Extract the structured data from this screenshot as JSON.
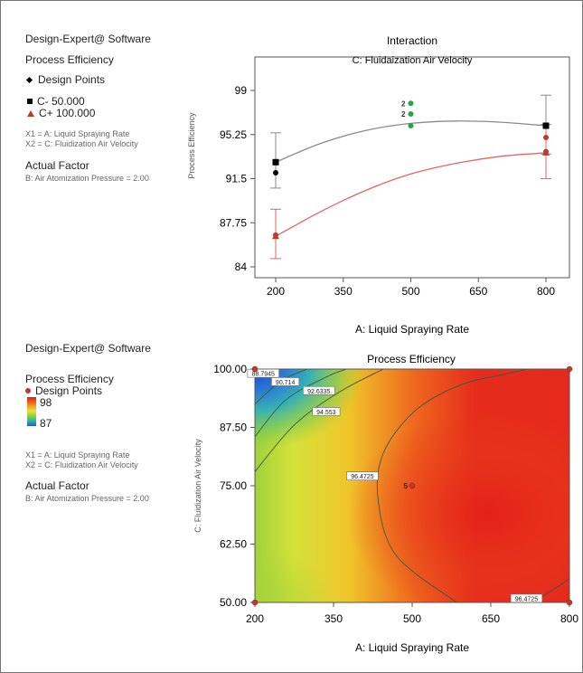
{
  "top": {
    "software": "Design-Expert@ Software",
    "response": "Process Efficiency",
    "design_points_label": "Design Points",
    "legend_low": "C- 50.000",
    "legend_high": "C+ 100.000",
    "x1_line": "X1 = A: Liquid Spraying Rate",
    "x2_line": "X2 = C: Fluidization Air Velocity",
    "actual_factor_title": "Actual Factor",
    "actual_factor_value": "B: Air Atomization Pressure = 2.00"
  },
  "bottom": {
    "software": "Design-Expert@ Software",
    "response": "Process Efficiency",
    "design_points_label": "Design Points",
    "scale_high": "98",
    "scale_low": "87",
    "x1_line": "X1 = A: Liquid Spraying Rate",
    "x2_line": "X2 = C: Fluidization Air Velocity",
    "actual_factor_title": "Actual Factor",
    "actual_factor_value": "B: Air Atomization Pressure = 2.00"
  },
  "colors": {
    "low_series": "#000000",
    "high_series": "#c0392b",
    "low_curve": "#8a8a8a",
    "high_curve": "#e06666",
    "center_point": "#27a54d"
  },
  "chart_data": [
    {
      "type": "line",
      "title": "Interaction",
      "subtitle": "C: Fluidaization Air Velocity",
      "xlabel": "A: Liquid Spraying Rate",
      "ylabel": "Process Efficiency",
      "xlim": [
        200,
        800
      ],
      "ylim": [
        84,
        99
      ],
      "xticks": [
        "200",
        "350",
        "500",
        "650",
        "800"
      ],
      "yticks": [
        "84",
        "87.75",
        "91.5",
        "95.25",
        "99"
      ],
      "series": [
        {
          "name": "C- 50.000",
          "x": [
            200,
            300,
            400,
            500,
            600,
            700,
            800
          ],
          "y": [
            92.9,
            94.5,
            95.6,
            96.2,
            96.4,
            96.3,
            96.0
          ],
          "error_bars": [
            {
              "x": 200,
              "low": 90.7,
              "high": 95.4
            },
            {
              "x": 800,
              "low": 93.6,
              "high": 98.6
            }
          ]
        },
        {
          "name": "C+ 100.000",
          "x": [
            200,
            300,
            400,
            500,
            600,
            700,
            800
          ],
          "y": [
            86.6,
            88.7,
            90.5,
            91.9,
            92.8,
            93.4,
            93.7
          ],
          "error_bars": [
            {
              "x": 200,
              "low": 84.7,
              "high": 88.9
            },
            {
              "x": 800,
              "low": 91.5,
              "high": 96.1
            }
          ]
        }
      ],
      "design_points": [
        {
          "x": 200,
          "y": 92.0,
          "series": "C- 50.000"
        },
        {
          "x": 800,
          "y": 96.0,
          "series": "C- 50.000"
        },
        {
          "x": 200,
          "y": 86.7,
          "series": "C+ 100.000"
        },
        {
          "x": 800,
          "y": 95.0,
          "series": "C+ 100.000"
        },
        {
          "x": 800,
          "y": 93.8,
          "series": "C+ 100.000"
        },
        {
          "x": 500,
          "y": 97.9,
          "label": "2"
        },
        {
          "x": 500,
          "y": 97.0,
          "label": "2"
        },
        {
          "x": 500,
          "y": 96.0
        }
      ]
    },
    {
      "type": "heatmap",
      "title": "Process Efficiency",
      "xlabel": "A: Liquid Spraying Rate",
      "ylabel": "C: Fluidization Air Velocity",
      "xlim": [
        200,
        800
      ],
      "ylim": [
        50,
        100
      ],
      "xticks": [
        "200",
        "350",
        "500",
        "650",
        "800"
      ],
      "yticks": [
        "50.00",
        "62.50",
        "75.00",
        "87.50",
        "100.00"
      ],
      "color_scale": {
        "min": 87,
        "max": 98
      },
      "contour_levels": [
        "88.7945",
        "90.714",
        "92.6335",
        "94.553",
        "96.4725",
        "96.4725"
      ],
      "design_points": [
        {
          "x": 200,
          "y": 100
        },
        {
          "x": 800,
          "y": 100
        },
        {
          "x": 200,
          "y": 50
        },
        {
          "x": 800,
          "y": 50
        },
        {
          "x": 500,
          "y": 75,
          "label": "5"
        }
      ]
    }
  ]
}
